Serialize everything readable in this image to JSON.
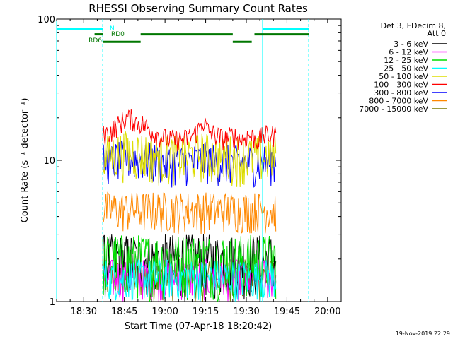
{
  "chart_data": {
    "type": "line",
    "title": "RHESSI Observing Summary Count Rates",
    "xlabel": "Start Time (07-Apr-18 18:20:42)",
    "ylabel": "Count Rate (s⁻¹ detector⁻¹)",
    "y_scale": "log",
    "ylim": [
      1,
      100
    ],
    "xlim": [
      "18:20",
      "20:05"
    ],
    "x_ticks": [
      "18:30",
      "18:45",
      "19:00",
      "19:15",
      "19:30",
      "19:45",
      "20:00"
    ],
    "y_ticks": [
      "1",
      "10",
      "100"
    ],
    "legend_position": "top-right",
    "legend_header": [
      "Det 3, FDecim 8,",
      "Att 0"
    ],
    "timestamp": "19-Nov-2019 22:29",
    "series": [
      {
        "name": "3 - 6 keV",
        "color": "#000000",
        "approx_range": [
          1,
          3
        ]
      },
      {
        "name": "6 - 12 keV",
        "color": "#ff00ff",
        "approx_range": [
          1,
          2
        ]
      },
      {
        "name": "12 - 25 keV",
        "color": "#00dd00",
        "approx_range": [
          1,
          3
        ]
      },
      {
        "name": "25 - 50 keV",
        "color": "#00ffff",
        "approx_range": [
          1,
          2
        ]
      },
      {
        "name": "50 - 100 keV",
        "color": "#dddd00",
        "approx_range": [
          6,
          14
        ]
      },
      {
        "name": "100 - 300 keV",
        "color": "#ff0000",
        "approx_range": [
          12,
          22
        ]
      },
      {
        "name": "300 - 800 keV",
        "color": "#0000ff",
        "approx_range": [
          6,
          12
        ]
      },
      {
        "name": "800 - 7000 keV",
        "color": "#ff8800",
        "approx_range": [
          3,
          6
        ]
      },
      {
        "name": "7000 - 15000 keV",
        "color": "#7a7a00",
        "approx_range": [
          1,
          2
        ]
      }
    ],
    "profile_100_300": [
      [
        "18:37",
        15
      ],
      [
        "18:40",
        16
      ],
      [
        "18:43",
        18
      ],
      [
        "18:46",
        20
      ],
      [
        "18:49",
        19
      ],
      [
        "18:52",
        18
      ],
      [
        "18:55",
        16
      ],
      [
        "18:58",
        15
      ],
      [
        "19:01",
        14
      ],
      [
        "19:04",
        14
      ],
      [
        "19:07",
        14
      ],
      [
        "19:10",
        15
      ],
      [
        "19:12",
        16
      ],
      [
        "19:14",
        19
      ],
      [
        "19:16",
        16
      ],
      [
        "19:19",
        15
      ],
      [
        "19:22",
        14
      ],
      [
        "19:25",
        15
      ],
      [
        "19:28",
        14
      ],
      [
        "19:31",
        15
      ],
      [
        "19:34",
        14
      ],
      [
        "19:37",
        15
      ],
      [
        "19:40",
        15
      ]
    ],
    "data_start": "18:37",
    "data_end": "19:41",
    "markers": {
      "vlines": [
        {
          "t": "18:20",
          "color": "#00ffff",
          "style": "solid"
        },
        {
          "t": "18:37",
          "color": "#00ffff",
          "style": "dashed"
        },
        {
          "t": "19:36",
          "color": "#00ffff",
          "style": "solid"
        },
        {
          "t": "19:53",
          "color": "#00ffff",
          "style": "dashed"
        }
      ],
      "bars": [
        {
          "label": "N",
          "color": "#00ffff",
          "y": 85,
          "segments": [
            [
              "18:20",
              "18:37"
            ],
            [
              "19:36",
              "19:53"
            ]
          ]
        },
        {
          "label": "RD0",
          "color": "#007700",
          "y": 78,
          "segments": [
            [
              "18:34",
              "18:37"
            ],
            [
              "18:51",
              "19:25"
            ],
            [
              "19:33",
              "19:53"
            ]
          ]
        },
        {
          "label": "RD6",
          "color": "#007700",
          "y": 69,
          "segments": [
            [
              "18:37",
              "18:51"
            ],
            [
              "19:25",
              "19:32"
            ]
          ]
        }
      ]
    }
  }
}
